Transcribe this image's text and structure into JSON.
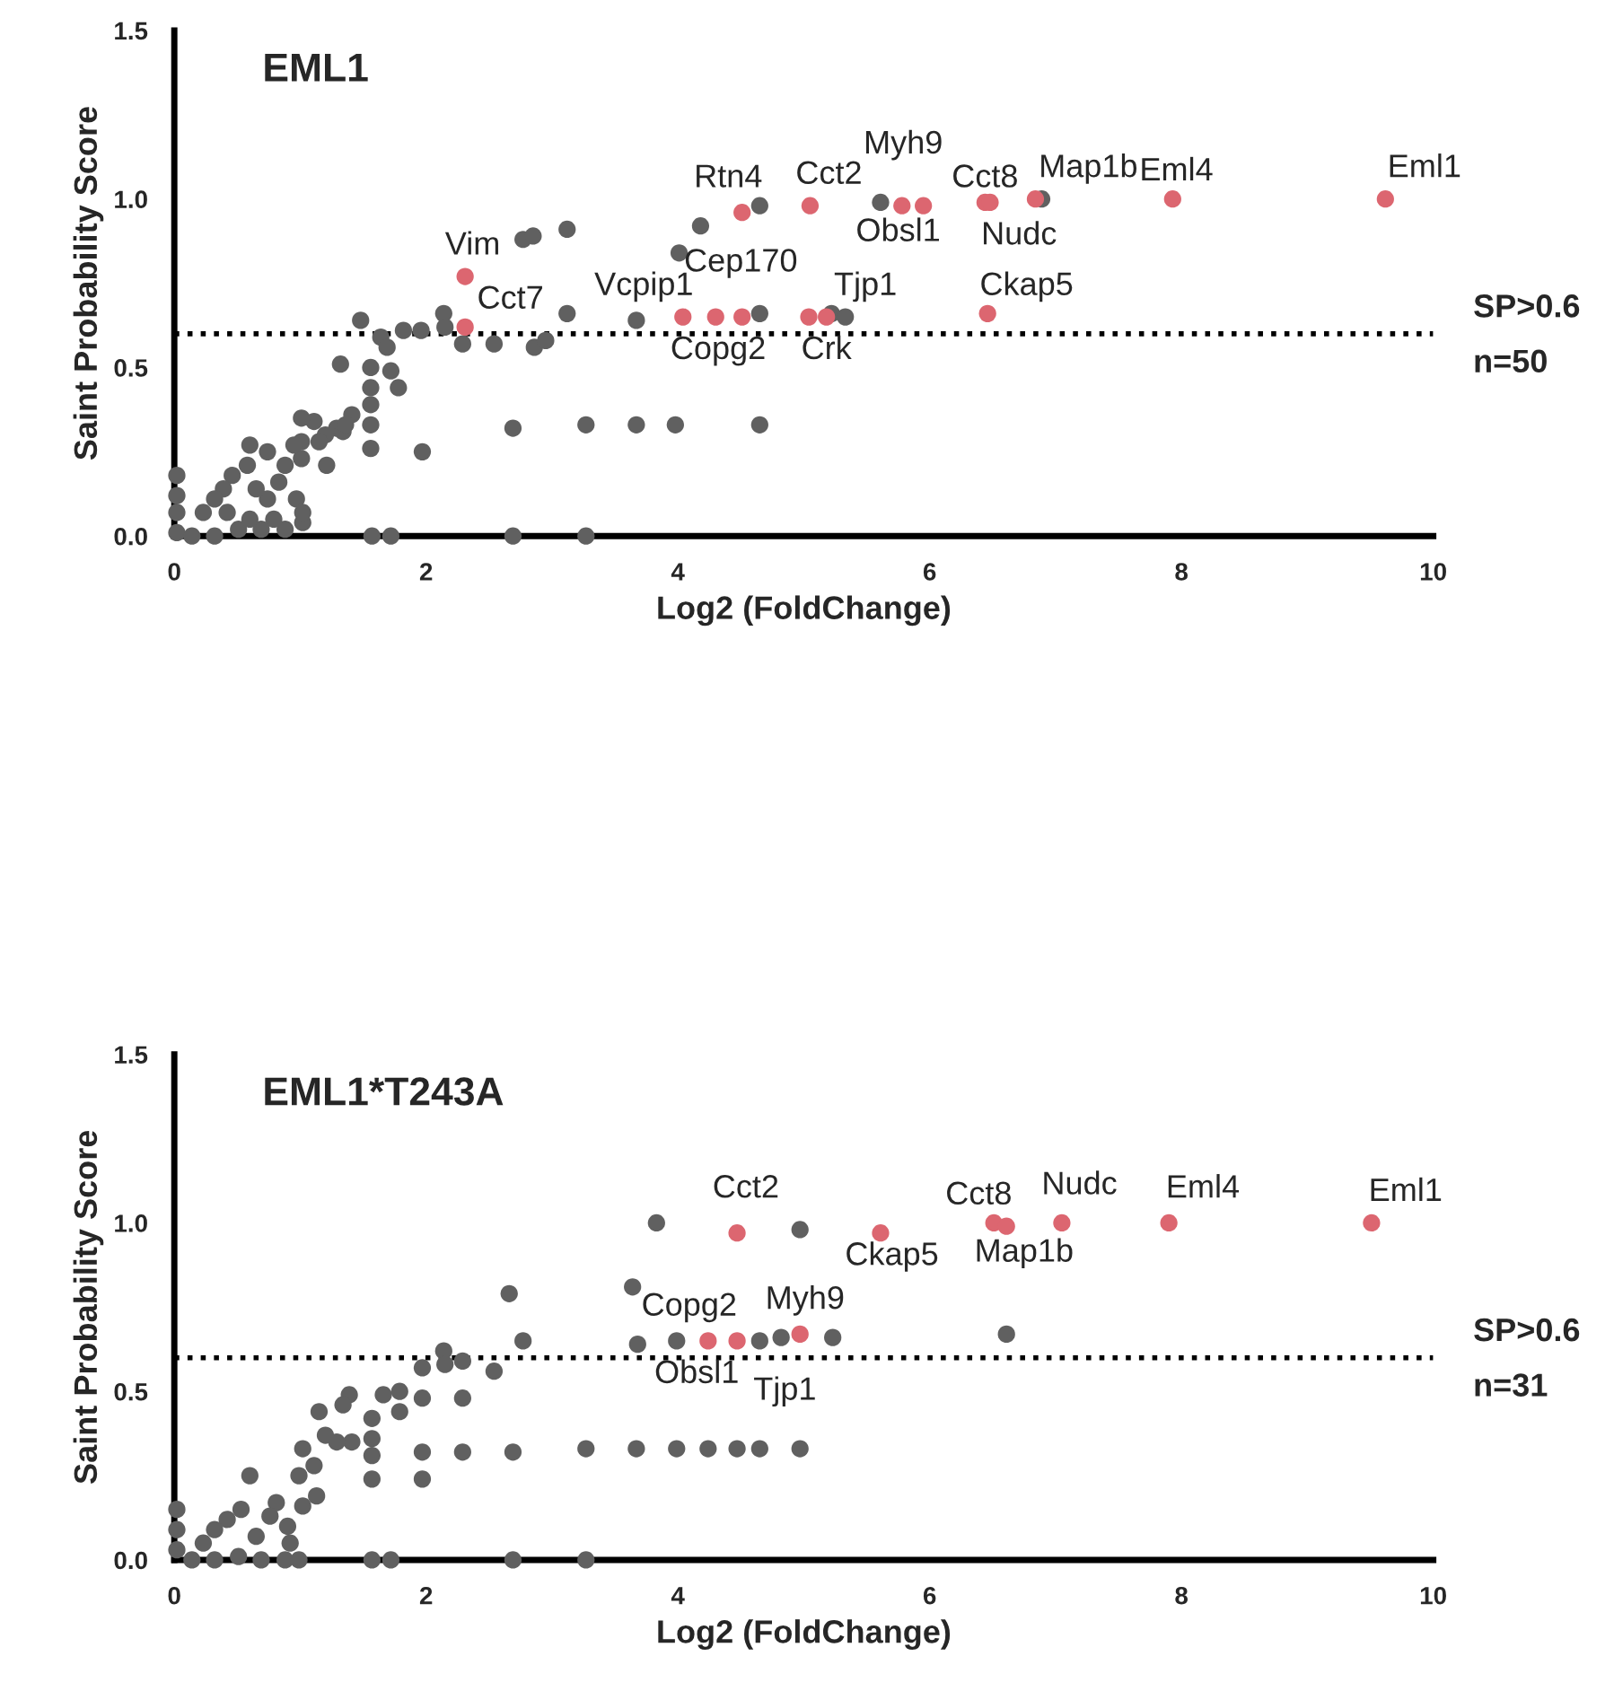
{
  "chart_data": [
    {
      "type": "scatter",
      "title": "EML1",
      "xlabel": "Log2 (FoldChange)",
      "ylabel": "Saint Probability Score",
      "xlim": [
        0,
        10
      ],
      "ylim": [
        0,
        1.5
      ],
      "xticks": [
        0,
        2,
        4,
        6,
        8,
        10
      ],
      "yticks": [
        {
          "value": 0,
          "label": "0.0"
        },
        {
          "value": 0.5,
          "label": "0.5"
        },
        {
          "value": 1,
          "label": "1.0"
        },
        {
          "value": 1.5,
          "label": "1.5"
        }
      ],
      "grid": false,
      "legend": false,
      "marker": "circle",
      "series": [
        {
          "color": "#606060",
          "x": [
            2.77,
            2.85,
            3.12,
            4.18,
            4.01,
            4.65,
            1.48,
            1.64,
            1.69,
            1.82,
            1.96,
            2.14,
            2.15,
            2.29,
            2.54,
            2.86,
            2.95,
            3.12,
            3.67,
            4.65,
            5.22,
            5.33,
            1.32,
            1.56,
            1.56,
            1.72,
            1.78,
            1.56,
            1.56,
            1.56,
            1.41,
            1.29,
            1.2,
            1.11,
            1.01,
            1.01,
            1.21,
            1.01,
            1.97,
            2.69,
            3.27,
            3.67,
            3.98,
            4.65,
            0.88,
            0.74,
            0.6,
            0.58,
            0.46,
            0.39,
            0.32,
            0.23,
            0.02,
            0.02,
            0.02,
            0.02,
            0.14,
            0.32,
            0.51,
            0.69,
            0.88,
            1.02,
            1.57,
            1.72,
            2.69,
            3.27,
            0.74,
            0.83,
            0.65,
            0.97,
            1.02,
            0.42,
            0.6,
            0.79,
            0.95,
            1.15,
            1.34,
            1.36,
            5.61,
            6.89
          ],
          "values": [
            0.88,
            0.89,
            0.91,
            0.92,
            0.84,
            0.98,
            0.64,
            0.59,
            0.56,
            0.61,
            0.61,
            0.66,
            0.62,
            0.57,
            0.57,
            0.56,
            0.58,
            0.66,
            0.64,
            0.66,
            0.66,
            0.65,
            0.51,
            0.5,
            0.44,
            0.49,
            0.44,
            0.39,
            0.33,
            0.26,
            0.36,
            0.32,
            0.3,
            0.34,
            0.35,
            0.28,
            0.21,
            0.23,
            0.25,
            0.32,
            0.33,
            0.33,
            0.33,
            0.33,
            0.21,
            0.25,
            0.27,
            0.21,
            0.18,
            0.14,
            0.11,
            0.07,
            0.18,
            0.12,
            0.07,
            0.01,
            0,
            0,
            0.02,
            0.02,
            0.02,
            0.04,
            0,
            0,
            0,
            0,
            0.11,
            0.16,
            0.14,
            0.11,
            0.07,
            0.07,
            0.05,
            0.05,
            0.27,
            0.28,
            0.31,
            0.33,
            0.99,
            1.0
          ]
        },
        {
          "color": "#dc6670",
          "x": [
            2.31,
            2.31,
            4.51,
            5.05,
            5.78,
            5.95,
            6.44,
            6.48,
            6.84,
            7.93,
            9.62,
            4.04,
            4.3,
            4.51,
            5.04,
            5.18,
            6.46
          ],
          "values": [
            0.77,
            0.62,
            0.96,
            0.98,
            0.98,
            0.98,
            0.99,
            0.99,
            1.0,
            1.0,
            1.0,
            0.65,
            0.65,
            0.65,
            0.65,
            0.65,
            0.66
          ]
        }
      ],
      "ref_lines": [
        {
          "axis": "y",
          "value": 0.6,
          "label": "SP>0.6",
          "color": "#000000",
          "line_style": "dotted"
        }
      ],
      "annotations": [
        {
          "text": "Vim",
          "x": 2.31,
          "y": 0.77
        },
        {
          "text": "Cct7",
          "x": 2.31,
          "y": 0.62
        },
        {
          "text": "Rtn4",
          "x": 4.51,
          "y": 0.96
        },
        {
          "text": "Cct2",
          "x": 5.05,
          "y": 0.98
        },
        {
          "text": "Myh9",
          "x": 5.61,
          "y": 0.99
        },
        {
          "text": "Obsl1",
          "x": 5.78,
          "y": 0.98
        },
        {
          "text": "Cct8",
          "x": 6.44,
          "y": 0.99
        },
        {
          "text": "Map1b",
          "x": 6.84,
          "y": 1.0
        },
        {
          "text": "Nudc",
          "x": 6.48,
          "y": 0.99
        },
        {
          "text": "Eml4",
          "x": 7.93,
          "y": 1.0
        },
        {
          "text": "Eml1",
          "x": 9.62,
          "y": 1.0
        },
        {
          "text": "Cep170",
          "x": 4.3,
          "y": 0.65
        },
        {
          "text": "Vcpip1",
          "x": 4.04,
          "y": 0.65
        },
        {
          "text": "Tjp1",
          "x": 5.18,
          "y": 0.65
        },
        {
          "text": "Ckap5",
          "x": 6.46,
          "y": 0.66
        },
        {
          "text": "Copg2",
          "x": 4.3,
          "y": 0.65
        },
        {
          "text": "Crk",
          "x": 5.04,
          "y": 0.65
        },
        "n=50"
      ]
    },
    {
      "type": "scatter",
      "title": "EML1*T243A",
      "xlabel": "Log2 (FoldChange)",
      "ylabel": "Saint Probability Score",
      "xlim": [
        0,
        10
      ],
      "ylim": [
        0,
        1.5
      ],
      "xticks": [
        0,
        2,
        4,
        6,
        8,
        10
      ],
      "yticks": [
        {
          "value": 0,
          "label": "0.0"
        },
        {
          "value": 0.5,
          "label": "0.5"
        },
        {
          "value": 1,
          "label": "1.0"
        },
        {
          "value": 1.5,
          "label": "1.5"
        }
      ],
      "grid": false,
      "legend": false,
      "marker": "circle",
      "series": [
        {
          "color": "#606060",
          "x": [
            3.83,
            4.97,
            3.64,
            2.66,
            3.68,
            3.99,
            4.65,
            4.82,
            5.23,
            2.77,
            2.14,
            2.15,
            1.97,
            2.29,
            2.54,
            2.29,
            1.97,
            1.79,
            1.66,
            1.79,
            1.57,
            1.39,
            1.34,
            1.15,
            1.57,
            1.57,
            1.57,
            1.97,
            1.97,
            2.29,
            2.69,
            3.27,
            3.67,
            3.99,
            4.24,
            4.47,
            4.65,
            4.97,
            1.41,
            1.29,
            1.2,
            1.02,
            1.11,
            0.99,
            1.13,
            0.81,
            0.76,
            0.6,
            0.53,
            0.42,
            0.32,
            0.23,
            0.02,
            0.02,
            0.02,
            0.14,
            0.32,
            0.51,
            0.69,
            0.88,
            0.99,
            1.57,
            1.72,
            2.69,
            3.27,
            0.65,
            0.92,
            1.02,
            0.9,
            6.61
          ],
          "values": [
            1.0,
            0.98,
            0.81,
            0.79,
            0.64,
            0.65,
            0.65,
            0.66,
            0.66,
            0.65,
            0.62,
            0.58,
            0.57,
            0.59,
            0.56,
            0.48,
            0.48,
            0.5,
            0.49,
            0.44,
            0.42,
            0.49,
            0.46,
            0.44,
            0.36,
            0.31,
            0.24,
            0.32,
            0.24,
            0.32,
            0.32,
            0.33,
            0.33,
            0.33,
            0.33,
            0.33,
            0.33,
            0.33,
            0.35,
            0.35,
            0.37,
            0.33,
            0.28,
            0.25,
            0.19,
            0.17,
            0.13,
            0.25,
            0.15,
            0.12,
            0.09,
            0.05,
            0.15,
            0.09,
            0.03,
            0,
            0,
            0.01,
            0,
            0,
            0,
            0,
            0,
            0,
            0,
            0.07,
            0.05,
            0.16,
            0.1,
            0.67
          ]
        },
        {
          "color": "#dc6670",
          "x": [
            4.47,
            4.24,
            4.47,
            4.97,
            5.61,
            6.51,
            6.61,
            7.05,
            7.9,
            9.51
          ],
          "values": [
            0.97,
            0.65,
            0.65,
            0.67,
            0.97,
            1.0,
            0.99,
            1.0,
            1.0,
            1.0
          ]
        }
      ],
      "ref_lines": [
        {
          "axis": "y",
          "value": 0.6,
          "label": "SP>0.6",
          "color": "#000000",
          "line_style": "dotted"
        }
      ],
      "annotations": [
        {
          "text": "Cct2",
          "x": 4.47,
          "y": 0.97
        },
        {
          "text": "Ckap5",
          "x": 5.61,
          "y": 0.97
        },
        {
          "text": "Cct8",
          "x": 6.51,
          "y": 1.0
        },
        {
          "text": "Map1b",
          "x": 6.61,
          "y": 0.99
        },
        {
          "text": "Nudc",
          "x": 7.05,
          "y": 1.0
        },
        {
          "text": "Eml4",
          "x": 7.9,
          "y": 1.0
        },
        {
          "text": "Eml1",
          "x": 9.51,
          "y": 1.0
        },
        {
          "text": "Copg2",
          "x": 4.24,
          "y": 0.65
        },
        {
          "text": "Myh9",
          "x": 4.97,
          "y": 0.67
        },
        {
          "text": "Obsl1",
          "x": 4.24,
          "y": 0.65
        },
        {
          "text": "Tjp1",
          "x": 4.47,
          "y": 0.65
        },
        "n=31"
      ]
    }
  ]
}
